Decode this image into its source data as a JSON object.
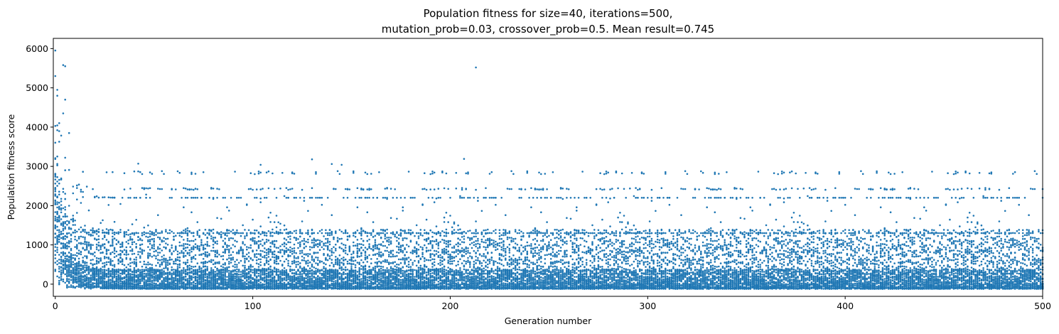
{
  "chart_data": {
    "type": "scatter",
    "title_lines": [
      "Population fitness for size=40, iterations=500,",
      "mutation_prob=0.03, crossover_prob=0.5. Mean result=0.745"
    ],
    "xlabel": "Generation number",
    "ylabel": "Population fitness score",
    "xlim": [
      -1,
      500
    ],
    "ylim": [
      -310,
      6260
    ],
    "xticks": [
      0,
      100,
      200,
      300,
      400,
      500
    ],
    "yticks": [
      0,
      1000,
      2000,
      3000,
      4000,
      5000,
      6000
    ],
    "grid": false,
    "legend": "none",
    "marker_color": "#1f77b4",
    "series": [
      {
        "population_per_generation": 40,
        "generations": [
          0,
          500
        ],
        "baseline_min": -120,
        "dense_band_upper": 1000,
        "sparse_levels": [
          1300,
          2200,
          2400,
          2800
        ],
        "notable_points": [
          {
            "x": 0,
            "y": 5950
          },
          {
            "x": 0,
            "y": 5300
          },
          {
            "x": 1,
            "y": 4950
          },
          {
            "x": 1,
            "y": 4800
          },
          {
            "x": 4,
            "y": 5580
          },
          {
            "x": 5,
            "y": 5550
          },
          {
            "x": 5,
            "y": 4700
          },
          {
            "x": 4,
            "y": 4350
          },
          {
            "x": 2,
            "y": 4100
          },
          {
            "x": 7,
            "y": 3850
          },
          {
            "x": 213,
            "y": 5520
          },
          {
            "x": 130,
            "y": 3180
          },
          {
            "x": 207,
            "y": 3190
          },
          {
            "x": 42,
            "y": 3070
          },
          {
            "x": 104,
            "y": 3040
          },
          {
            "x": 140,
            "y": 3060
          },
          {
            "x": 145,
            "y": 3040
          }
        ]
      }
    ]
  }
}
